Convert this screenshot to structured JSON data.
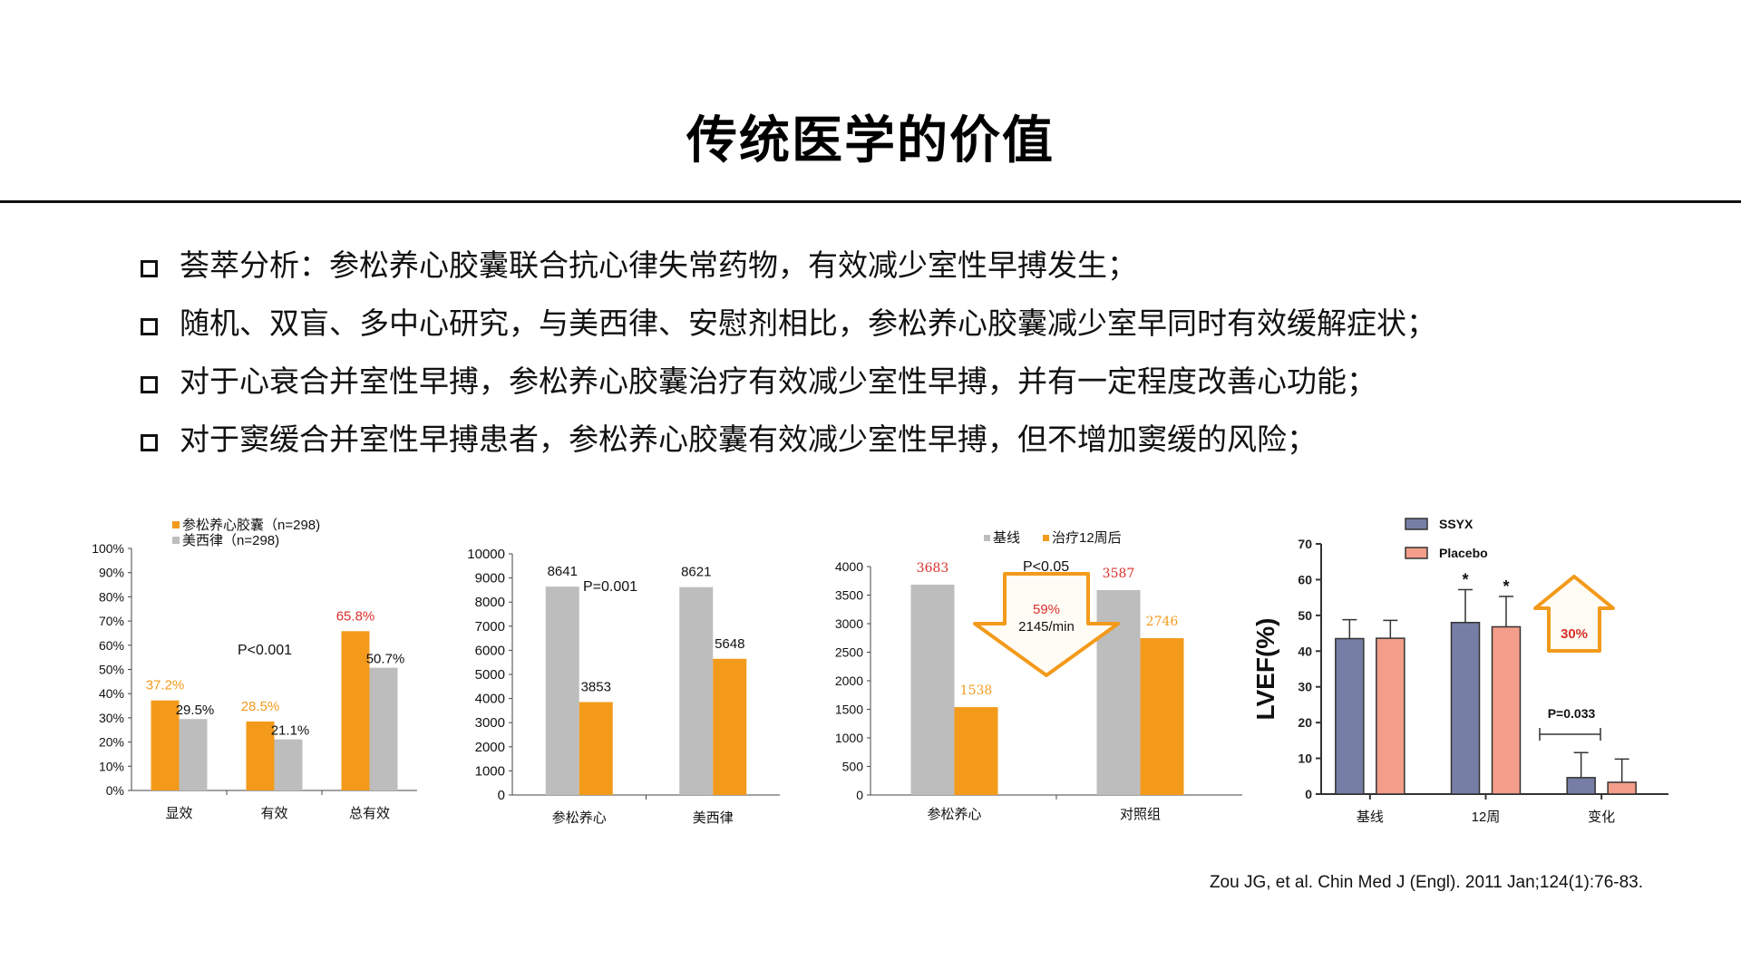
{
  "title": "传统医学的价值",
  "bullets": [
    "荟萃分析：参松养心胶囊联合抗心律失常药物，有效减少室性早搏发生；",
    "随机、双盲、多中心研究，与美西律、安慰剂相比，参松养心胶囊减少室早同时有效缓解症状；",
    "对于心衰合并室性早搏，参松养心胶囊治疗有效减少室性早搏，并有一定程度改善心功能；",
    "对于窦缓合并室性早搏患者，参松养心胶囊有效减少室性早搏，但不增加窦缓的风险；"
  ],
  "citation": "Zou JG, et al. Chin Med J (Engl). 2011 Jan;124(1):76-83.",
  "colors": {
    "orange": "#f39a1b",
    "gray": "#bdbdbd",
    "red": "#d9312b",
    "navy": "#767ea6",
    "salmon": "#f39d8a"
  },
  "chart_data": [
    {
      "type": "bar",
      "categories": [
        "显效",
        "有效",
        "总有效"
      ],
      "series": [
        {
          "name": "参松养心胶囊（n=298)",
          "values": [
            37.2,
            28.5,
            65.8
          ],
          "color": "#f39a1b"
        },
        {
          "name": "美西律（n=298)",
          "values": [
            29.5,
            21.1,
            50.7
          ],
          "color": "#bdbdbd"
        }
      ],
      "data_labels": [
        [
          "37.2%",
          "28.5%",
          "65.8%"
        ],
        [
          "29.5%",
          "21.1%",
          "50.7%"
        ]
      ],
      "yticks": [
        "0%",
        "10%",
        "20%",
        "30%",
        "40%",
        "50%",
        "60%",
        "70%",
        "80%",
        "90%",
        "100%"
      ],
      "ylim": [
        0,
        100
      ],
      "annotation": "P<0.001",
      "legend": "top-left"
    },
    {
      "type": "bar",
      "categories": [
        "参松养心",
        "美西律"
      ],
      "series": [
        {
          "values": [
            8641,
            8621
          ],
          "color": "#bdbdbd"
        },
        {
          "values": [
            3853,
            5648
          ],
          "color": "#f39a1b"
        }
      ],
      "yticks": [
        "0",
        "1000",
        "2000",
        "3000",
        "4000",
        "5000",
        "6000",
        "7000",
        "8000",
        "9000",
        "10000"
      ],
      "ylim": [
        0,
        10000
      ],
      "annotation": "P=0.001"
    },
    {
      "type": "bar",
      "categories": [
        "参松养心",
        "对照组"
      ],
      "series": [
        {
          "name": "基线",
          "values": [
            3683,
            3587
          ],
          "color": "#bdbdbd"
        },
        {
          "name": "治疗12周后",
          "values": [
            1538,
            2746
          ],
          "color": "#f39a1b"
        }
      ],
      "yticks": [
        "0",
        "500",
        "1000",
        "1500",
        "2000",
        "2500",
        "3000",
        "3500",
        "4000"
      ],
      "ylim": [
        0,
        4000
      ],
      "annotation": "P<0.05",
      "arrow_text": [
        "59%",
        "2145/min"
      ],
      "legend": "top"
    },
    {
      "type": "bar",
      "categories": [
        "基线",
        "12周",
        "变化"
      ],
      "series": [
        {
          "name": "SSYX",
          "values": [
            43.5,
            48.0,
            4.6
          ],
          "errors": [
            5.3,
            9.2,
            7.0
          ],
          "color": "#767ea6"
        },
        {
          "name": "Placebo",
          "values": [
            43.6,
            46.8,
            3.3
          ],
          "errors": [
            5.0,
            8.5,
            6.5
          ],
          "color": "#f39d8a"
        }
      ],
      "ylabel": "LVEF(%)",
      "yticks": [
        "0",
        "10",
        "20",
        "30",
        "40",
        "50",
        "60",
        "70"
      ],
      "ylim": [
        0,
        70
      ],
      "significance": [
        "*",
        "*"
      ],
      "annotation": "P=0.033",
      "arrow_text": "30%",
      "legend": "top-right"
    }
  ]
}
